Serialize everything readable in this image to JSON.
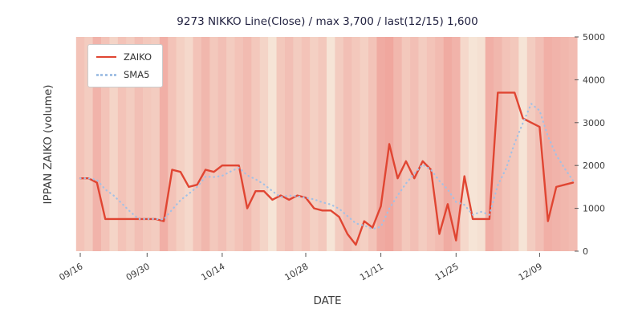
{
  "chart_data": {
    "type": "line",
    "title": "9273 NIKKO Line(Close) / max 3,700 / last(12/15) 1,600",
    "xlabel": "DATE",
    "ylabel": "IPPAN ZAIKO (volume)",
    "ylim": [
      0,
      5000
    ],
    "yticks": [
      0,
      1000,
      2000,
      3000,
      4000,
      5000
    ],
    "ytick_side": "right",
    "grid": false,
    "legend_position": "upper left",
    "x_dates": [
      "09/16",
      "09/20",
      "09/21",
      "09/22",
      "09/26",
      "09/27",
      "09/28",
      "09/29",
      "09/30",
      "10/03",
      "10/04",
      "10/05",
      "10/06",
      "10/07",
      "10/11",
      "10/12",
      "10/13",
      "10/14",
      "10/17",
      "10/18",
      "10/19",
      "10/20",
      "10/21",
      "10/24",
      "10/25",
      "10/26",
      "10/27",
      "10/28",
      "10/31",
      "11/01",
      "11/02",
      "11/04",
      "11/07",
      "11/08",
      "11/09",
      "11/10",
      "11/11",
      "11/14",
      "11/15",
      "11/16",
      "11/17",
      "11/18",
      "11/21",
      "11/22",
      "11/24",
      "11/25",
      "11/28",
      "11/29",
      "11/30",
      "12/01",
      "12/02",
      "12/05",
      "12/06",
      "12/07",
      "12/08",
      "12/09",
      "12/12",
      "12/13",
      "12/14",
      "12/15"
    ],
    "xtick_labels": [
      "09/16",
      "09/30",
      "10/14",
      "10/28",
      "11/11",
      "11/25",
      "12/09"
    ],
    "xtick_indices": [
      0,
      8,
      17,
      27,
      36,
      45,
      55
    ],
    "series": [
      {
        "name": "ZAIKO",
        "style": "solid",
        "color": "#e04532",
        "values": [
          1700,
          1700,
          1600,
          750,
          750,
          750,
          750,
          750,
          750,
          750,
          700,
          1900,
          1850,
          1500,
          1550,
          1900,
          1850,
          2000,
          2000,
          2000,
          1000,
          1400,
          1400,
          1200,
          1300,
          1200,
          1300,
          1250,
          1000,
          950,
          950,
          800,
          400,
          150,
          700,
          550,
          1050,
          2500,
          1700,
          2100,
          1700,
          2100,
          1900,
          400,
          1100,
          250,
          1750,
          750,
          750,
          750,
          3700,
          3700,
          3700,
          3100,
          3000,
          2900,
          700,
          1500,
          1550,
          1600
        ]
      },
      {
        "name": "SMA5",
        "style": "dotted",
        "color": "#a3c1e5",
        "values": [
          1700,
          1700,
          1665,
          1440,
          1300,
          1110,
          920,
          750,
          750,
          750,
          740,
          970,
          1190,
          1340,
          1500,
          1740,
          1730,
          1760,
          1860,
          1950,
          1770,
          1680,
          1560,
          1400,
          1260,
          1300,
          1280,
          1250,
          1210,
          1140,
          1090,
          990,
          820,
          650,
          600,
          520,
          570,
          990,
          1300,
          1580,
          1810,
          2020,
          1900,
          1640,
          1440,
          1150,
          1080,
          850,
          920,
          850,
          1540,
          1930,
          2520,
          2990,
          3440,
          3280,
          2680,
          2240,
          1930,
          1650
        ]
      }
    ],
    "background_bands": {
      "low_color": "#f7f0e1",
      "high_color": "#ef9f97",
      "intensities": [
        0.55,
        0.45,
        0.75,
        0.55,
        0.35,
        0.55,
        0.45,
        0.6,
        0.5,
        0.45,
        0.8,
        0.55,
        0.4,
        0.3,
        0.55,
        0.7,
        0.5,
        0.6,
        0.45,
        0.55,
        0.65,
        0.5,
        0.35,
        0.15,
        0.5,
        0.6,
        0.45,
        0.55,
        0.4,
        0.5,
        0.15,
        0.45,
        0.6,
        0.5,
        0.4,
        0.55,
        0.85,
        0.9,
        0.7,
        0.5,
        0.6,
        0.45,
        0.55,
        0.65,
        0.85,
        0.75,
        0.3,
        0.15,
        0.2,
        0.8,
        0.7,
        0.55,
        0.5,
        0.15,
        0.45,
        0.6,
        0.8,
        0.75,
        0.7,
        0.65
      ]
    },
    "max_value": 3700,
    "last_date": "12/15",
    "last_value": 1600,
    "axis_colors": {
      "tick_label": "#3a3a3a",
      "tick_mark": "#555555",
      "title": "#232342"
    }
  }
}
